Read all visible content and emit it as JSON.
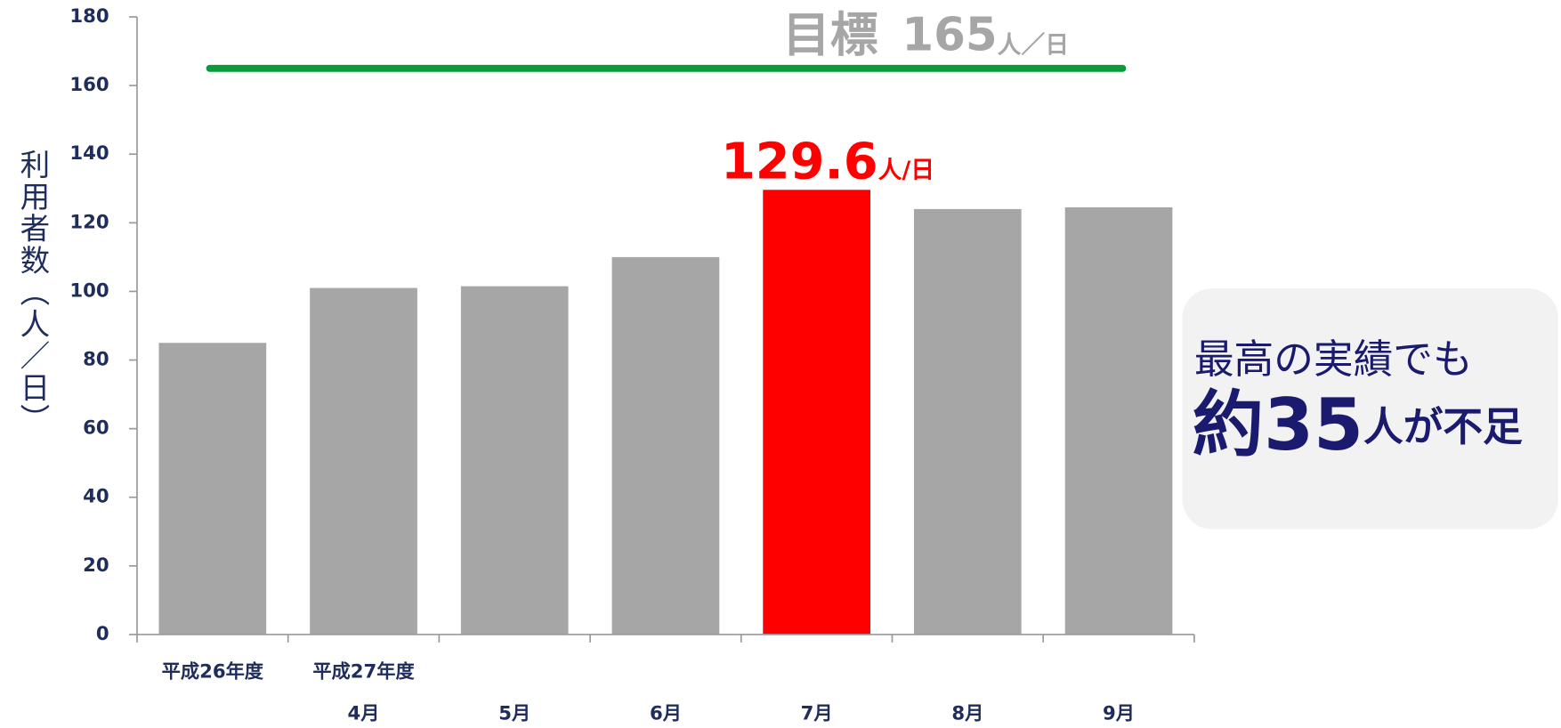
{
  "chart_data": {
    "type": "bar",
    "y_axis_label": "利用者数（人／日）",
    "groups": [
      "平成26年度",
      "平成27年度"
    ],
    "categories": [
      null,
      "4月",
      "5月",
      "6月",
      "7月",
      "8月",
      "9月"
    ],
    "values": [
      85,
      101,
      101.5,
      110,
      129.6,
      124,
      124.5
    ],
    "colors": [
      "#a6a6a6",
      "#a6a6a6",
      "#a6a6a6",
      "#a6a6a6",
      "#ff0000",
      "#a6a6a6",
      "#a6a6a6"
    ],
    "highlight_label": {
      "value": "129.6",
      "unit": "人/日"
    },
    "target": {
      "label": "目標",
      "value": 165,
      "unit": "人／日",
      "color": "#0a9a3c"
    },
    "ylim": [
      0,
      180
    ],
    "yticks": [
      0,
      20,
      40,
      60,
      80,
      100,
      120,
      140,
      160,
      180
    ],
    "callout": {
      "line1": "最高の実績でも",
      "amount": "約35",
      "rest": "人が不足"
    }
  }
}
